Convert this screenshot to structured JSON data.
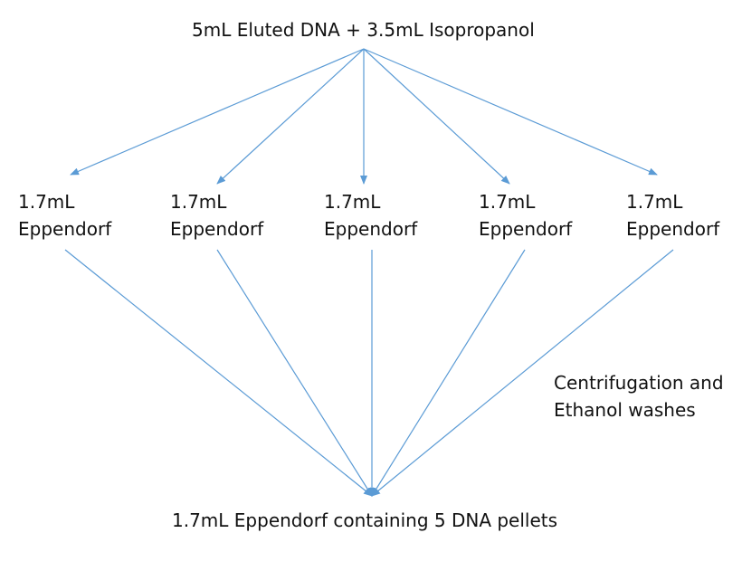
{
  "diagram": {
    "source": "5mL Eluted DNA + 3.5mL Isopropanol",
    "tubes": [
      {
        "line1": "1.7mL",
        "line2": "Eppendorf"
      },
      {
        "line1": "1.7mL",
        "line2": "Eppendorf"
      },
      {
        "line1": "1.7mL",
        "line2": "Eppendorf"
      },
      {
        "line1": "1.7mL",
        "line2": "Eppendorf"
      },
      {
        "line1": "1.7mL",
        "line2": "Eppendorf"
      }
    ],
    "note_line1": "Centrifugation and",
    "note_line2": "Ethanol washes",
    "result": "1.7mL Eppendorf containing 5 DNA pellets",
    "line_color": "#5b9bd5",
    "text_color": "#111111"
  }
}
